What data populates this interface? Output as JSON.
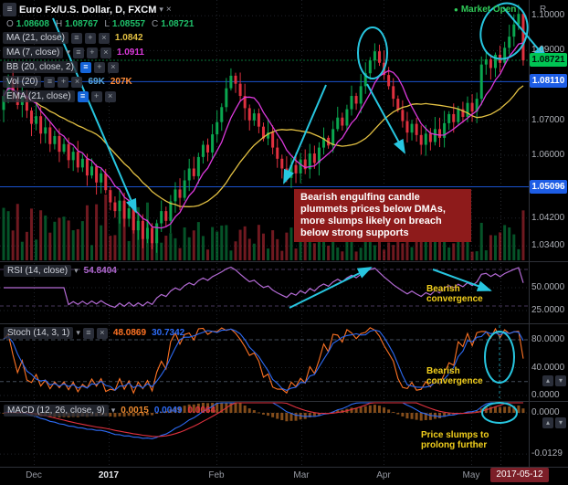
{
  "colors": {
    "up": "#0aa64f",
    "down": "#e0313f",
    "ma_fast": "#db39db",
    "ma_slow": "#e2c043",
    "rsi": "#b36ad4",
    "stoch_k": "#ff7324",
    "stoch_d": "#2d6bf5",
    "macd_line": "#2d6bf5",
    "macd_sig": "#e0313f",
    "macd_hist": "#ef8b2f",
    "cyan": "#27c6e0",
    "level": "#1d5de5",
    "grid": "#20232a",
    "axis": "#aeb1b8",
    "dim": "#9598a1",
    "text": "#d1d4dc",
    "chip": "#2a2e39",
    "note_bg": "#8e1b1b",
    "note_yellow": "#f2cf1d",
    "open_green": "#2fca58",
    "date_bg": "#7c1f28",
    "badge_green": "#00c553",
    "badge_blue": "#1d5de5",
    "val_green": "#1fc06a"
  },
  "icons": {
    "menu": "≡",
    "caret_down": "▾",
    "close": "×",
    "plus": "+",
    "dot": "●",
    "caret_up": "▴"
  },
  "header": {
    "symbol": "Euro Fx/U.S. Dollar, D, FXCM",
    "market_status": "Market Open",
    "aux_label": "R",
    "ohlc": {
      "o_label": "O",
      "o_value": "1.08608",
      "h_label": "H",
      "h_value": "1.08767",
      "l_label": "L",
      "l_value": "1.08557",
      "c_label": "C",
      "c_value": "1.08721"
    }
  },
  "overlay_legends": [
    {
      "label": "MA (21, close)",
      "value": "1.0842"
    },
    {
      "label": "MA (7, close)",
      "value": "1.0911"
    },
    {
      "label": "BB (20, close, 2)",
      "value": ""
    },
    {
      "label": "Vol (20)",
      "value": "69K",
      "value2": "207K"
    },
    {
      "label": "EMA (21, close)",
      "value": ""
    }
  ],
  "panes": {
    "rsi": {
      "label": "RSI (14, close)",
      "value": "54.8404"
    },
    "stoch": {
      "label": "Stoch (14, 3, 1)",
      "value_k": "48.0869",
      "value_d": "30.7342"
    },
    "macd": {
      "label": "MACD (12, 26, close, 9)",
      "value_hist": "0.0015",
      "value_macd": "0.0049",
      "value_signal": "0.0064"
    }
  },
  "annotations": {
    "engulfing_note": "Bearish engulfing candle plummets prices below DMAs, more slumps likely on breach below strong supports",
    "rsi_note": "Bearish convergence",
    "stoch_note": "Bearish convergence",
    "macd_note": "Price slumps to prolong further"
  },
  "chart_data": {
    "type": "candlestick",
    "title": "Euro Fx/U.S. Dollar, D, FXCM",
    "x_axis": {
      "labels": [
        {
          "label": "Dec",
          "x": 37,
          "major": false
        },
        {
          "label": "2017",
          "x": 119,
          "major": true
        },
        {
          "label": "Feb",
          "x": 237,
          "major": false
        },
        {
          "label": "Mar",
          "x": 330,
          "major": false
        },
        {
          "label": "Apr",
          "x": 420,
          "major": false
        },
        {
          "label": "May",
          "x": 516,
          "major": false
        }
      ],
      "date_badge": "2017-05-12"
    },
    "main_pane": {
      "ylim": [
        1.031,
        1.1045
      ],
      "price_ticks": [
        {
          "label": "1.10000",
          "value": 1.1
        },
        {
          "label": "1.09000",
          "value": 1.09
        },
        {
          "label": "1.07000",
          "value": 1.07
        },
        {
          "label": "1.06000",
          "value": 1.06
        },
        {
          "label": "1.04200",
          "value": 1.042
        },
        {
          "label": "1.03400",
          "value": 1.034
        }
      ],
      "badges": [
        {
          "label": "1.08721",
          "value": 1.08721,
          "bg": "#00c553",
          "fg": "#00140a"
        },
        {
          "label": "1.08110",
          "value": 1.0811,
          "bg": "#1d5de5",
          "fg": "#ffffff"
        },
        {
          "label": "1.05096",
          "value": 1.05096,
          "bg": "#1d5de5",
          "fg": "#ffffff"
        }
      ],
      "levels": [
        1.0811,
        1.05096
      ],
      "last_price": 1.08721,
      "closes": [
        1.077,
        1.0815,
        1.0782,
        1.0744,
        1.077,
        1.0728,
        1.069,
        1.0712,
        1.0662,
        1.068,
        1.0632,
        1.0655,
        1.061,
        1.0632,
        1.0586,
        1.061,
        1.0565,
        1.059,
        1.0542,
        1.0568,
        1.0522,
        1.0548,
        1.05,
        1.0465,
        1.044,
        1.047,
        1.0418,
        1.0448,
        1.0385,
        1.0412,
        1.036,
        1.0392,
        1.0348,
        1.0405,
        1.044,
        1.0412,
        1.0468,
        1.0502,
        1.0478,
        1.0528,
        1.0562,
        1.054,
        1.0595,
        1.063,
        1.0608,
        1.066,
        1.0695,
        1.0738,
        1.0792,
        1.0828,
        1.0805,
        1.077,
        1.0735,
        1.07,
        1.072,
        1.0682,
        1.0648,
        1.0665,
        1.0622,
        1.059,
        1.0562,
        1.0535,
        1.0572,
        1.0548,
        1.0588,
        1.056,
        1.0605,
        1.0578,
        1.0622,
        1.065,
        1.0628,
        1.0675,
        1.0708,
        1.0685,
        1.0732,
        1.077,
        1.0748,
        1.0798,
        1.0835,
        1.0872,
        1.0898,
        1.0865,
        1.083,
        1.0798,
        1.0762,
        1.073,
        1.0698,
        1.0665,
        1.069,
        1.0658,
        1.063,
        1.0662,
        1.0638,
        1.0675,
        1.065,
        1.0692,
        1.0718,
        1.0695,
        1.0732,
        1.071,
        1.075,
        1.0725,
        1.0762,
        1.086,
        1.0875,
        1.085,
        1.0888,
        1.0865,
        1.0908,
        1.094,
        1.0975,
        1.1005,
        1.0872
      ]
    },
    "rsi_pane": {
      "ticks": [
        {
          "label": "50.0000",
          "value": 50
        },
        {
          "label": "25.0000",
          "value": 25
        }
      ],
      "bands": [
        70,
        30
      ],
      "last": 54.8404
    },
    "stoch_pane": {
      "ticks": [
        {
          "label": "80.0000",
          "value": 80
        },
        {
          "label": "40.0000",
          "value": 40
        },
        {
          "label": "0.0000",
          "value": 0
        }
      ],
      "bands": [
        80,
        20
      ],
      "last_k": 48.0869,
      "last_d": 30.7342
    },
    "macd_pane": {
      "ticks": [
        {
          "label": "0.0000",
          "value": 0
        },
        {
          "label": "-0.0129",
          "value": -0.0129
        }
      ],
      "last": [
        0.0015,
        0.0049,
        0.0064
      ]
    }
  }
}
